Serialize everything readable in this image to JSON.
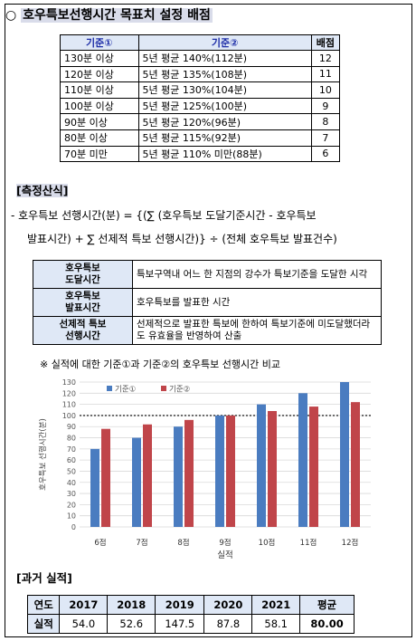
{
  "title": "호우특보선행시간 목표치 설정 배점",
  "criteria_table": {
    "headers": [
      "기준①",
      "기준②",
      "배점"
    ],
    "rows": [
      {
        "c1": "130분 이상",
        "c2": "5년 평균 140%(112분)",
        "score": "12"
      },
      {
        "c1": "120분 이상",
        "c2": "5년 평균 135%(108분)",
        "score": "11"
      },
      {
        "c1": "110분 이상",
        "c2": "5년 평균 130%(104분)",
        "score": "10"
      },
      {
        "c1": "100분 이상",
        "c2": "5년 평균 125%(100분)",
        "score": "9"
      },
      {
        "c1": "90분 이상",
        "c2": "5년 평균 120%(96분)",
        "score": "8"
      },
      {
        "c1": "80분 이상",
        "c2": "5년 평균 115%(92분)",
        "score": "7"
      },
      {
        "c1": "70분 미만",
        "c2": "5년 평균 110% 미만(88분)",
        "score": "6"
      }
    ]
  },
  "formula_section": {
    "heading": "[측정산식]",
    "line1": "- 호우특보 선행시간(분) = {(∑ (호우특보 도달기준시간 - 호우특보",
    "line2": "발표시간) + ∑ 선제적 특보 선행시간)} ÷ (전체 호우특보 발표건수)"
  },
  "definitions": [
    {
      "term": [
        "호우특보",
        "도달시간"
      ],
      "desc": "특보구역내 어느 한 지점의 강수가 특보기준을 도달한 시각"
    },
    {
      "term": [
        "호우특보",
        "발표시간"
      ],
      "desc": "호우특보를 발표한 시간"
    },
    {
      "term": [
        "선제적 특보",
        "선행시간"
      ],
      "desc": "선제적으로 발표한 특보에 한하여 특보기준에 미도달했더라도 유효율을 반영하여 산출"
    }
  ],
  "chart_note": "※ 실적에 대한 기준①과 기준②의 호우특보 선행시간 비교",
  "chart_data": {
    "type": "bar",
    "categories": [
      "6점",
      "7점",
      "8점",
      "9점",
      "10점",
      "11점",
      "12점"
    ],
    "series": [
      {
        "name": "기준①",
        "values": [
          70,
          80,
          90,
          100,
          110,
          120,
          130
        ],
        "color": "#4a7cc0"
      },
      {
        "name": "기준②",
        "values": [
          88,
          92,
          96,
          100,
          104,
          108,
          112
        ],
        "color": "#c0454a"
      }
    ],
    "xlabel": "실적",
    "ylabel": "호우특보 선행시간(분)",
    "ylim": [
      0,
      130
    ],
    "yticks": [
      0,
      10,
      20,
      30,
      40,
      50,
      60,
      70,
      80,
      90,
      100,
      110,
      120,
      130
    ],
    "reference_line": 100,
    "legend_position": "top-left"
  },
  "past_section": {
    "heading": "[과거 실적]",
    "headers": [
      "연도",
      "2017",
      "2018",
      "2019",
      "2020",
      "2021",
      "평균"
    ],
    "row_label": "실적",
    "values": [
      "54.0",
      "52.6",
      "147.5",
      "87.8",
      "58.1",
      "80.00"
    ]
  }
}
